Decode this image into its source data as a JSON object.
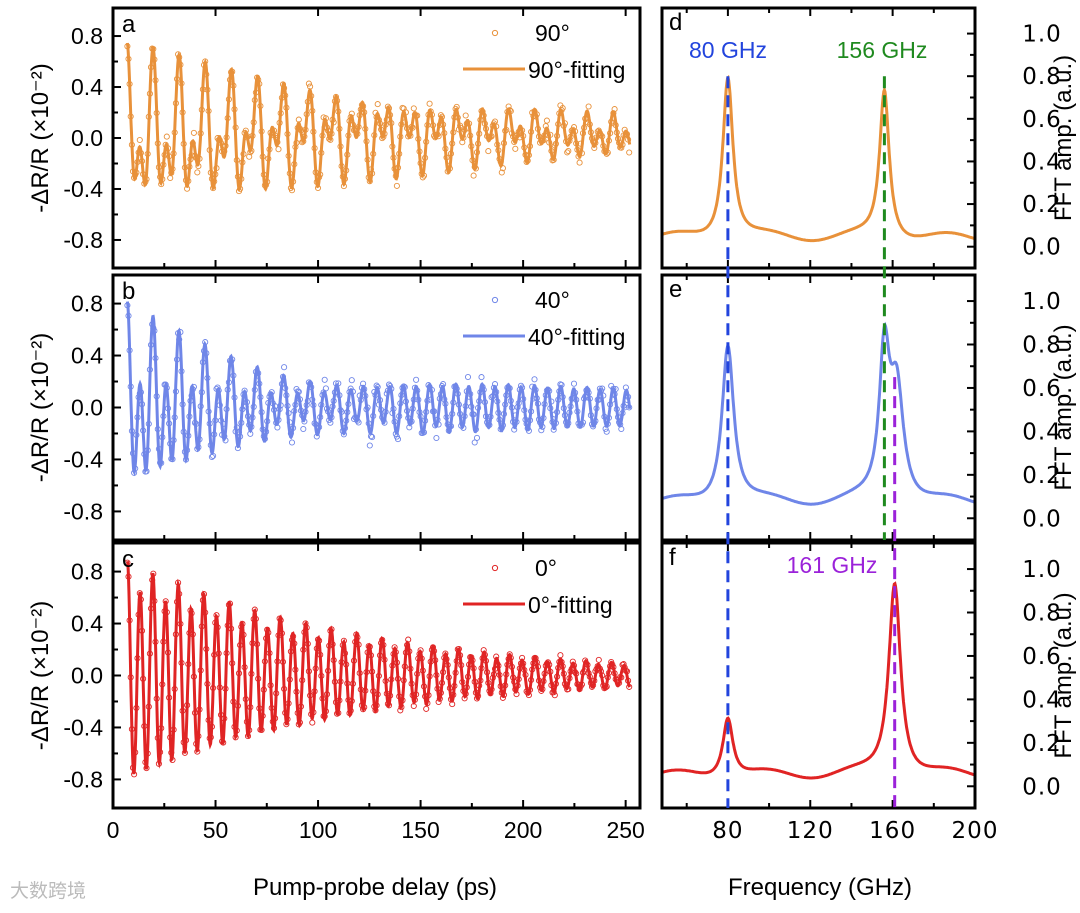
{
  "chart_data": [
    {
      "type": "scatter",
      "panel": "a",
      "xlabel": "Pump-probe delay (ps)",
      "ylabel": "-ΔR/R (×10⁻²)",
      "xlim": [
        0,
        257
      ],
      "ylim": [
        -1.02,
        1.02
      ],
      "xticks": [
        "0",
        "50",
        "100",
        "150",
        "200",
        "250"
      ],
      "yticks": [
        "-0.8",
        "-0.4",
        "0.0",
        "0.4",
        "0.8"
      ],
      "legend": [
        "90°",
        "90°-fitting"
      ],
      "legend_placement": "top-right",
      "color": "#e8913a",
      "t_start": 7,
      "t_end": 252,
      "noise": 0.09,
      "fit_components": [
        {
          "freq_GHz": 80,
          "amp": 0.42,
          "tau_ps": 140,
          "phase": 0.0
        },
        {
          "freq_GHz": 156,
          "amp": 0.32,
          "tau_ps": 220,
          "phase": 0.3
        }
      ],
      "offset": 0.02
    },
    {
      "type": "scatter",
      "panel": "b",
      "xlabel": "Pump-probe delay (ps)",
      "ylabel": "-ΔR/R (×10⁻²)",
      "xlim": [
        0,
        257
      ],
      "ylim": [
        -1.02,
        1.02
      ],
      "xticks": [
        "0",
        "50",
        "100",
        "150",
        "200",
        "250"
      ],
      "yticks": [
        "-0.8",
        "-0.4",
        "0.0",
        "0.4",
        "0.8"
      ],
      "legend": [
        "40°",
        "40°-fitting"
      ],
      "legend_placement": "top-right",
      "color": "#6f86e8",
      "t_start": 7,
      "t_end": 252,
      "noise": 0.1,
      "fit_components": [
        {
          "freq_GHz": 80,
          "amp": 0.32,
          "tau_ps": 60,
          "phase": 0.0
        },
        {
          "freq_GHz": 156,
          "amp": 0.25,
          "tau_ps": 400,
          "phase": 0.2
        },
        {
          "freq_GHz": 161,
          "amp": 0.25,
          "tau_ps": 60,
          "phase": 0.0
        }
      ],
      "offset": 0.0
    },
    {
      "type": "scatter",
      "panel": "c",
      "xlabel": "Pump-probe delay (ps)",
      "ylabel": "-ΔR/R (×10⁻²)",
      "xlim": [
        0,
        257
      ],
      "ylim": [
        -1.02,
        1.02
      ],
      "xticks": [
        "0",
        "50",
        "100",
        "150",
        "200",
        "250"
      ],
      "yticks": [
        "-0.8",
        "-0.4",
        "0.0",
        "0.4",
        "0.8"
      ],
      "legend": [
        "0°",
        "0°-fitting"
      ],
      "legend_placement": "top-right",
      "color": "#e02424",
      "t_start": 7,
      "t_end": 252,
      "noise": 0.04,
      "fit_components": [
        {
          "freq_GHz": 161,
          "amp": 0.78,
          "tau_ps": 110,
          "phase": 0.0
        },
        {
          "freq_GHz": 80,
          "amp": 0.1,
          "tau_ps": 120,
          "phase": 0.0
        }
      ],
      "offset": 0.0
    },
    {
      "type": "line",
      "panel": "d",
      "xlabel": "Frequency (GHz)",
      "ylabel": "FFT amp. (a.u.)",
      "xlim": [
        48,
        200
      ],
      "ylim": [
        -0.1,
        1.12
      ],
      "xticks": [
        "80",
        "120",
        "160",
        "200"
      ],
      "yticks": [
        "0.0",
        "0.2",
        "0.4",
        "0.6",
        "0.8",
        "1.0"
      ],
      "color": "#e8913a",
      "baseline": 0.04,
      "peaks": [
        {
          "freq_GHz": 80,
          "height": 0.77,
          "hwhm": 3.0
        },
        {
          "freq_GHz": 156,
          "height": 0.7,
          "hwhm": 2.8
        }
      ],
      "markers": [
        {
          "freq_GHz": 80,
          "label": "80 GHz",
          "color": "#2244dd"
        },
        {
          "freq_GHz": 156,
          "label": "156 GHz",
          "color": "#1f8a1f"
        }
      ]
    },
    {
      "type": "line",
      "panel": "e",
      "xlabel": "Frequency (GHz)",
      "ylabel": "FFT amp. (a.u.)",
      "xlim": [
        48,
        200
      ],
      "ylim": [
        -0.1,
        1.12
      ],
      "xticks": [
        "80",
        "120",
        "160",
        "200"
      ],
      "yticks": [
        "0.0",
        "0.2",
        "0.4",
        "0.6",
        "0.8",
        "1.0"
      ],
      "color": "#6f86e8",
      "baseline": 0.07,
      "peaks": [
        {
          "freq_GHz": 80,
          "height": 0.74,
          "hwhm": 3.5
        },
        {
          "freq_GHz": 156,
          "height": 0.66,
          "hwhm": 3.0
        },
        {
          "freq_GHz": 162,
          "height": 0.52,
          "hwhm": 4.0
        }
      ]
    },
    {
      "type": "line",
      "panel": "f",
      "xlabel": "Frequency (GHz)",
      "ylabel": "FFT amp. (a.u.)",
      "xlim": [
        48,
        200
      ],
      "ylim": [
        -0.1,
        1.12
      ],
      "xticks": [
        "80",
        "120",
        "160",
        "200"
      ],
      "yticks": [
        "0.0",
        "0.2",
        "0.4",
        "0.6",
        "0.8",
        "1.0"
      ],
      "color": "#e02424",
      "baseline": 0.05,
      "peaks": [
        {
          "freq_GHz": 80,
          "height": 0.28,
          "hwhm": 3.0
        },
        {
          "freq_GHz": 161,
          "height": 0.9,
          "hwhm": 3.5
        }
      ],
      "markers": [
        {
          "freq_GHz": 161,
          "label": "161 GHz",
          "color": "#9b22d9"
        }
      ]
    }
  ],
  "watermark": "大数跨境"
}
